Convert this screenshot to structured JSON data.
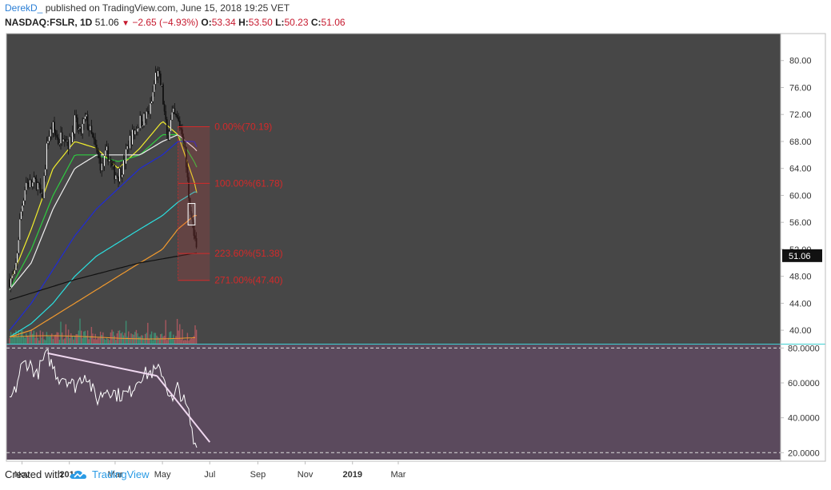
{
  "header": {
    "author": "DerekD_",
    "published_text": "published on TradingView.com, June 15, 2018 19:25 VET",
    "symbol": "NASDAQ:FSLR, 1D",
    "last": "51.06",
    "change": "−2.65 (−4.93%)",
    "open_label": "O:",
    "open": "53.34",
    "high_label": "H:",
    "high": "53.50",
    "low_label": "L:",
    "low": "50.23",
    "close_label": "C:",
    "close": "51.06"
  },
  "footer": {
    "created_with": "Created with",
    "brand": "TradingView"
  },
  "colors": {
    "panel_bg": "#474747",
    "rsi_bg": "#5b4a5d",
    "up": "#ffffff",
    "down": "#111111",
    "fib": "#d32a2a",
    "ema_yellow": "#f2ee2c",
    "ema_green": "#2ecc40",
    "ema_white": "#f0f0f0",
    "ema_blue": "#1f2bd6",
    "ema_cyan": "#2be0e0",
    "ema_orange": "#f29a2e",
    "ema_black": "#111111",
    "vol_up": "#3d9b7a",
    "vol_down": "#b85a63",
    "rsi_line": "#ffffff",
    "trendline": "#f0d8f0"
  },
  "chart_data": [
    {
      "type": "line",
      "title": "NASDAQ:FSLR, 1D",
      "y_range": [
        38.0,
        84.0
      ],
      "y_ticks": [
        "80.00",
        "76.00",
        "72.00",
        "68.00",
        "64.00",
        "60.00",
        "56.00",
        "52.00",
        "48.00",
        "44.00",
        "40.00"
      ],
      "last_price_label": "51.06",
      "x_ticks": [
        "Nov",
        "2018",
        "Mar",
        "May",
        "Jul",
        "Sep",
        "Nov",
        "2019",
        "Mar"
      ],
      "price_series": {
        "name": "FSLR close",
        "x": [
          "2017-10-16",
          "2017-10-23",
          "2017-10-30",
          "2017-11-06",
          "2017-11-13",
          "2017-11-20",
          "2017-11-27",
          "2017-12-04",
          "2017-12-11",
          "2017-12-18",
          "2017-12-25",
          "2018-01-01",
          "2018-01-08",
          "2018-01-15",
          "2018-01-22",
          "2018-01-29",
          "2018-02-05",
          "2018-02-12",
          "2018-02-19",
          "2018-02-26",
          "2018-03-05",
          "2018-03-12",
          "2018-03-19",
          "2018-03-26",
          "2018-04-02",
          "2018-04-09",
          "2018-04-16",
          "2018-04-23",
          "2018-04-30",
          "2018-05-07",
          "2018-05-14",
          "2018-05-21",
          "2018-05-28",
          "2018-06-04",
          "2018-06-11",
          "2018-06-15"
        ],
        "values": [
          47.5,
          48.0,
          57.0,
          62.0,
          61.5,
          62.0,
          59.0,
          68.5,
          70.0,
          68.0,
          69.5,
          67.5,
          71.0,
          69.0,
          71.5,
          69.0,
          66.5,
          64.0,
          66.5,
          63.5,
          63.0,
          64.5,
          68.0,
          69.5,
          71.0,
          71.5,
          73.0,
          78.5,
          76.0,
          68.5,
          72.0,
          71.0,
          69.0,
          60.0,
          53.5,
          51.06
        ]
      },
      "moving_averages": [
        {
          "color": "yellow",
          "x": [
            "2017-10-16",
            "2017-11-13",
            "2017-12-11",
            "2018-01-08",
            "2018-02-05",
            "2018-03-05",
            "2018-04-02",
            "2018-05-01",
            "2018-05-21",
            "2018-06-11",
            "2018-06-15"
          ],
          "values": [
            47,
            55,
            64,
            68,
            67,
            64,
            67,
            71,
            69,
            62,
            60
          ]
        },
        {
          "color": "green",
          "x": [
            "2017-10-16",
            "2017-11-13",
            "2017-12-11",
            "2018-01-08",
            "2018-02-05",
            "2018-03-05",
            "2018-04-02",
            "2018-05-01",
            "2018-05-21",
            "2018-06-11",
            "2018-06-15"
          ],
          "values": [
            46,
            52,
            60,
            66,
            66,
            65,
            66,
            69,
            69,
            65,
            64
          ]
        },
        {
          "color": "white",
          "x": [
            "2017-10-16",
            "2017-11-13",
            "2017-12-11",
            "2018-01-08",
            "2018-02-05",
            "2018-03-05",
            "2018-04-02",
            "2018-05-01",
            "2018-05-21",
            "2018-06-11",
            "2018-06-15"
          ],
          "values": [
            46,
            50,
            58,
            64,
            66,
            66,
            66,
            68,
            69,
            67,
            66.5
          ]
        },
        {
          "color": "blue",
          "x": [
            "2017-10-16",
            "2017-11-13",
            "2017-12-11",
            "2018-01-08",
            "2018-02-05",
            "2018-03-05",
            "2018-04-02",
            "2018-05-01",
            "2018-05-21",
            "2018-06-11",
            "2018-06-15"
          ],
          "values": [
            40,
            44,
            49,
            54,
            58,
            61,
            64,
            66,
            68,
            68,
            67
          ]
        },
        {
          "color": "cyan",
          "x": [
            "2017-10-16",
            "2017-11-13",
            "2017-12-11",
            "2018-01-08",
            "2018-02-05",
            "2018-03-05",
            "2018-04-02",
            "2018-05-01",
            "2018-05-21",
            "2018-06-11",
            "2018-06-15"
          ],
          "values": [
            39,
            41,
            44,
            48,
            51,
            53,
            55,
            57,
            59,
            60.5,
            60.5
          ]
        },
        {
          "color": "orange",
          "x": [
            "2017-10-16",
            "2017-11-13",
            "2017-12-11",
            "2018-01-08",
            "2018-02-05",
            "2018-03-05",
            "2018-04-02",
            "2018-05-01",
            "2018-05-21",
            "2018-06-11",
            "2018-06-15"
          ],
          "values": [
            39,
            40,
            42,
            44,
            46,
            48,
            50,
            52,
            55,
            57,
            57
          ]
        },
        {
          "color": "black",
          "x": [
            "2017-10-16",
            "2018-01-08",
            "2018-04-02",
            "2018-06-15"
          ],
          "values": [
            44.5,
            47.5,
            50,
            51.5
          ]
        }
      ],
      "fib_levels": [
        {
          "label": "0.00%(70.19)",
          "value": 70.19
        },
        {
          "label": "100.00%(61.78)",
          "value": 61.78
        },
        {
          "label": "223.60%(51.38)",
          "value": 51.38
        },
        {
          "label": "271.00%(47.40)",
          "value": 47.4
        }
      ],
      "fib_range": {
        "x_start": "2018-05-21",
        "x_end": "2018-07-01"
      },
      "highlight_box": {
        "x_start": "2018-06-03",
        "x_end": "2018-06-12",
        "y_top": 58.8,
        "y_bottom": 55.6
      }
    },
    {
      "type": "line",
      "title": "RSI",
      "y_range": [
        16.0,
        82.0
      ],
      "y_ticks": [
        "80.0000",
        "60.0000",
        "40.0000",
        "20.0000"
      ],
      "guides": [
        80,
        20
      ],
      "series": {
        "x": [
          "2017-10-16",
          "2017-10-23",
          "2017-10-30",
          "2017-11-06",
          "2017-11-13",
          "2017-11-20",
          "2017-11-27",
          "2017-12-04",
          "2017-12-11",
          "2017-12-18",
          "2017-12-25",
          "2018-01-08",
          "2018-01-22",
          "2018-02-05",
          "2018-02-19",
          "2018-03-05",
          "2018-03-19",
          "2018-04-02",
          "2018-04-16",
          "2018-04-30",
          "2018-05-14",
          "2018-05-21",
          "2018-06-04",
          "2018-06-11",
          "2018-06-15"
        ],
        "values": [
          50,
          55,
          68,
          72,
          70,
          64,
          72,
          76,
          69,
          63,
          64,
          58,
          66,
          50,
          57,
          53,
          54,
          64,
          66,
          67,
          48,
          58,
          42,
          24,
          28
        ]
      },
      "trendlines": [
        {
          "x": [
            "2017-12-04",
            "2018-04-24"
          ],
          "values": [
            77,
            64
          ]
        },
        {
          "x": [
            "2018-04-24",
            "2018-07-01"
          ],
          "values": [
            64,
            26
          ]
        }
      ]
    }
  ]
}
